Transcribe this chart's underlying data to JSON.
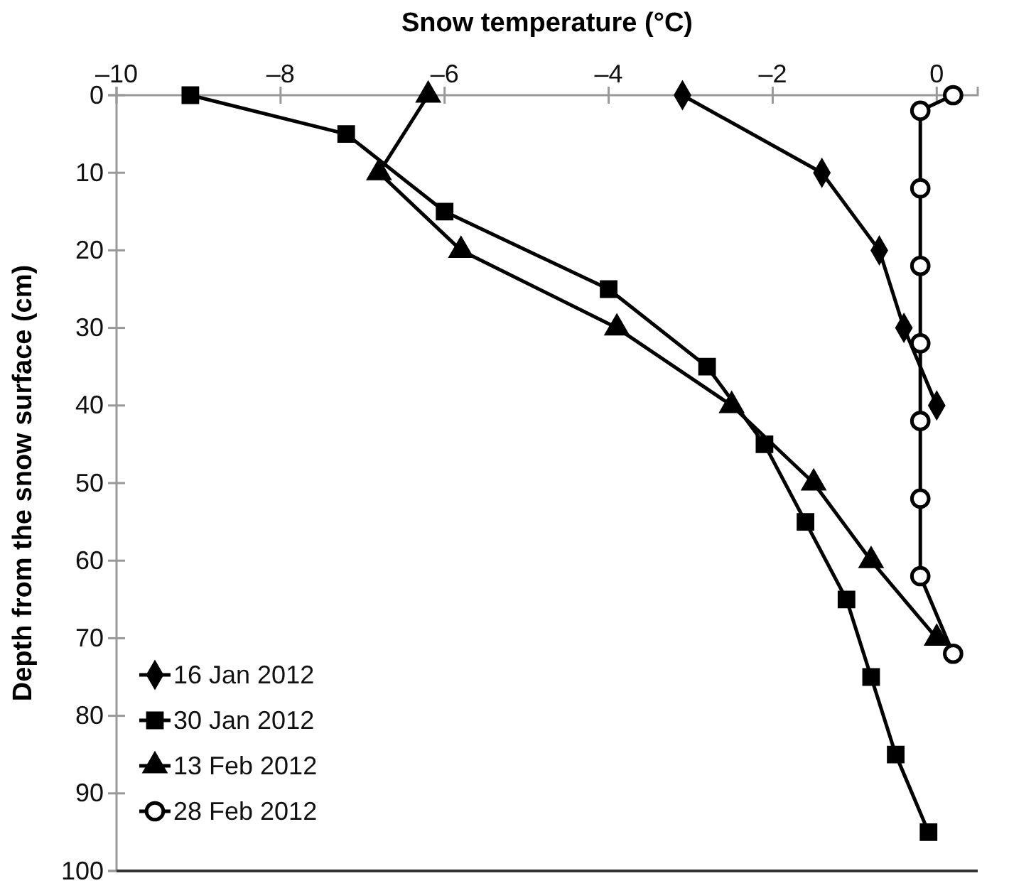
{
  "chart_data": {
    "type": "line",
    "xlabel": "Snow temperature (°C)",
    "ylabel": "Depth from the snow surface (cm)",
    "xlim": [
      -10,
      0.5
    ],
    "xticks": [
      {
        "value": -10,
        "label": "–10"
      },
      {
        "value": -8,
        "label": "–8"
      },
      {
        "value": -6,
        "label": "–6"
      },
      {
        "value": -4,
        "label": "–4"
      },
      {
        "value": -2,
        "label": "–2"
      },
      0
    ],
    "ylim": [
      100,
      0
    ],
    "yticks": [
      0,
      10,
      20,
      30,
      40,
      50,
      60,
      70,
      80,
      90,
      100
    ],
    "grid": false,
    "legend": "bottom left",
    "line_style": "solid",
    "series": [
      {
        "name": "16 Jan 2012",
        "color": "#000000",
        "marker": "diamond",
        "x": [
          -3.1,
          -1.4,
          -0.7,
          -0.4,
          0.0
        ],
        "values": [
          0,
          10,
          20,
          30,
          40
        ]
      },
      {
        "name": "30 Jan 2012",
        "color": "#000000",
        "marker": "square",
        "x": [
          -9.1,
          -7.2,
          -6.0,
          -4.0,
          -2.8,
          -2.1,
          -1.6,
          -1.1,
          -0.8,
          -0.5,
          -0.1
        ],
        "values": [
          0,
          5,
          15,
          25,
          35,
          45,
          55,
          65,
          75,
          85,
          95
        ]
      },
      {
        "name": "13 Feb 2012",
        "color": "#000000",
        "marker": "triangle",
        "x": [
          -6.2,
          -6.8,
          -5.8,
          -3.9,
          -2.5,
          -1.5,
          -0.8,
          0.0
        ],
        "values": [
          0,
          10,
          20,
          30,
          40,
          50,
          60,
          70
        ]
      },
      {
        "name": "28 Feb 2012",
        "color": "#000000",
        "marker": "circle",
        "x": [
          0.2,
          -0.2,
          -0.2,
          -0.2,
          -0.2,
          -0.2,
          -0.2,
          -0.2,
          0.2
        ],
        "values": [
          0,
          2,
          12,
          22,
          32,
          42,
          52,
          62,
          72
        ]
      }
    ]
  }
}
